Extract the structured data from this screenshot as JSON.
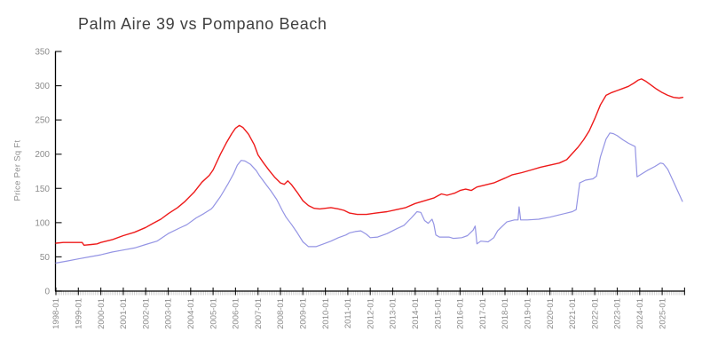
{
  "window": {
    "background": "#ffffff"
  },
  "chart_data": {
    "type": "line",
    "title": "Palm Aire 39 vs Pompano Beach",
    "ylabel": "Price Per Sq Ft",
    "xlabel": "",
    "ylim": [
      0,
      350
    ],
    "yticks": [
      0,
      50,
      100,
      150,
      200,
      250,
      300,
      350
    ],
    "x_tick_labels": [
      "1998-01",
      "1999-01",
      "2000-01",
      "2001-01",
      "2002-01",
      "2003-01",
      "2004-01",
      "2005-01",
      "2006-01",
      "2007-01",
      "2008-01",
      "2009-01",
      "2010-01",
      "2011-01",
      "2012-01",
      "2013-01",
      "2014-01",
      "2015-01",
      "2016-01",
      "2017-01",
      "2018-01",
      "2019-01",
      "2020-01",
      "2021-01",
      "2022-01",
      "2023-01",
      "2024-01",
      "2025-01"
    ],
    "x_tick_start_year": 1998,
    "x_axis_end_year": 2026.0,
    "x_minor_tick_interval": "monthly",
    "grid": false,
    "legend": "none",
    "colors": {
      "axis": "#000000",
      "major_tick": "#222222",
      "minor_tick": "#c9c9c9",
      "tick_label": "#8c8c8c",
      "title": "#3f3f3f"
    },
    "series": [
      {
        "name": "Pompano Beach",
        "color": "#ee1a1a",
        "stroke_width": 1.4,
        "points": [
          [
            1998.0,
            70
          ],
          [
            1998.33,
            71
          ],
          [
            1998.67,
            71
          ],
          [
            1999.0,
            71
          ],
          [
            1999.17,
            71
          ],
          [
            1999.25,
            67
          ],
          [
            1999.58,
            68
          ],
          [
            1999.83,
            69
          ],
          [
            2000.0,
            71
          ],
          [
            2000.5,
            75
          ],
          [
            2001.0,
            81
          ],
          [
            2001.5,
            86
          ],
          [
            2002.0,
            93
          ],
          [
            2002.33,
            99
          ],
          [
            2002.67,
            105
          ],
          [
            2003.0,
            113
          ],
          [
            2003.42,
            122
          ],
          [
            2003.75,
            131
          ],
          [
            2004.17,
            145
          ],
          [
            2004.5,
            159
          ],
          [
            2004.83,
            169
          ],
          [
            2005.0,
            177
          ],
          [
            2005.33,
            200
          ],
          [
            2005.58,
            216
          ],
          [
            2005.83,
            230
          ],
          [
            2006.0,
            238
          ],
          [
            2006.17,
            242
          ],
          [
            2006.33,
            239
          ],
          [
            2006.58,
            229
          ],
          [
            2006.83,
            214
          ],
          [
            2007.0,
            199
          ],
          [
            2007.25,
            187
          ],
          [
            2007.5,
            176
          ],
          [
            2007.75,
            166
          ],
          [
            2008.0,
            158
          ],
          [
            2008.17,
            156
          ],
          [
            2008.33,
            161
          ],
          [
            2008.5,
            155
          ],
          [
            2008.75,
            144
          ],
          [
            2009.0,
            132
          ],
          [
            2009.25,
            125
          ],
          [
            2009.5,
            121
          ],
          [
            2009.75,
            120
          ],
          [
            2010.0,
            121
          ],
          [
            2010.25,
            122
          ],
          [
            2010.58,
            120
          ],
          [
            2010.83,
            118
          ],
          [
            2011.08,
            114
          ],
          [
            2011.42,
            112
          ],
          [
            2011.83,
            112
          ],
          [
            2012.25,
            114
          ],
          [
            2012.75,
            116
          ],
          [
            2013.17,
            119
          ],
          [
            2013.58,
            122
          ],
          [
            2014.0,
            128
          ],
          [
            2014.42,
            132
          ],
          [
            2014.83,
            136
          ],
          [
            2015.0,
            139
          ],
          [
            2015.17,
            142
          ],
          [
            2015.42,
            140
          ],
          [
            2015.75,
            143
          ],
          [
            2016.0,
            147
          ],
          [
            2016.25,
            149
          ],
          [
            2016.5,
            147
          ],
          [
            2016.75,
            152
          ],
          [
            2017.0,
            154
          ],
          [
            2017.5,
            158
          ],
          [
            2018.0,
            165
          ],
          [
            2018.33,
            170
          ],
          [
            2018.75,
            173
          ],
          [
            2019.17,
            177
          ],
          [
            2019.58,
            181
          ],
          [
            2020.0,
            184
          ],
          [
            2020.42,
            187
          ],
          [
            2020.75,
            192
          ],
          [
            2021.0,
            201
          ],
          [
            2021.25,
            210
          ],
          [
            2021.5,
            221
          ],
          [
            2021.75,
            234
          ],
          [
            2022.0,
            252
          ],
          [
            2022.25,
            272
          ],
          [
            2022.5,
            286
          ],
          [
            2022.75,
            290
          ],
          [
            2023.0,
            293
          ],
          [
            2023.25,
            296
          ],
          [
            2023.5,
            299
          ],
          [
            2023.75,
            304
          ],
          [
            2023.92,
            308
          ],
          [
            2024.08,
            310
          ],
          [
            2024.25,
            307
          ],
          [
            2024.5,
            301
          ],
          [
            2024.75,
            295
          ],
          [
            2025.0,
            290
          ],
          [
            2025.25,
            286
          ],
          [
            2025.5,
            283
          ],
          [
            2025.75,
            282
          ],
          [
            2025.92,
            283
          ]
        ]
      },
      {
        "name": "Palm Aire 39",
        "color": "#9494e4",
        "stroke_width": 1.2,
        "points": [
          [
            1998.0,
            41
          ],
          [
            1998.5,
            44
          ],
          [
            1999.0,
            47
          ],
          [
            1999.5,
            50
          ],
          [
            2000.0,
            53
          ],
          [
            2000.5,
            57
          ],
          [
            2001.0,
            60
          ],
          [
            2001.5,
            63
          ],
          [
            2002.0,
            68
          ],
          [
            2002.5,
            73
          ],
          [
            2003.0,
            84
          ],
          [
            2003.5,
            92
          ],
          [
            2003.83,
            97
          ],
          [
            2004.25,
            107
          ],
          [
            2004.58,
            113
          ],
          [
            2004.92,
            120
          ],
          [
            2005.0,
            123
          ],
          [
            2005.33,
            138
          ],
          [
            2005.67,
            157
          ],
          [
            2005.92,
            172
          ],
          [
            2006.08,
            184
          ],
          [
            2006.25,
            191
          ],
          [
            2006.42,
            190
          ],
          [
            2006.67,
            185
          ],
          [
            2006.92,
            176
          ],
          [
            2007.08,
            168
          ],
          [
            2007.33,
            157
          ],
          [
            2007.58,
            146
          ],
          [
            2007.83,
            134
          ],
          [
            2008.08,
            118
          ],
          [
            2008.25,
            108
          ],
          [
            2008.5,
            97
          ],
          [
            2008.75,
            85
          ],
          [
            2009.0,
            72
          ],
          [
            2009.25,
            65
          ],
          [
            2009.58,
            65
          ],
          [
            2009.92,
            69
          ],
          [
            2010.25,
            73
          ],
          [
            2010.58,
            78
          ],
          [
            2010.92,
            82
          ],
          [
            2011.08,
            85
          ],
          [
            2011.33,
            87
          ],
          [
            2011.58,
            88
          ],
          [
            2011.83,
            83
          ],
          [
            2012.0,
            78
          ],
          [
            2012.33,
            79
          ],
          [
            2012.75,
            84
          ],
          [
            2013.17,
            91
          ],
          [
            2013.5,
            96
          ],
          [
            2013.83,
            107
          ],
          [
            2014.0,
            113
          ],
          [
            2014.08,
            116
          ],
          [
            2014.25,
            115
          ],
          [
            2014.42,
            103
          ],
          [
            2014.58,
            99
          ],
          [
            2014.75,
            105
          ],
          [
            2014.83,
            98
          ],
          [
            2014.92,
            82
          ],
          [
            2015.08,
            79
          ],
          [
            2015.5,
            79
          ],
          [
            2015.7,
            77
          ],
          [
            2016.08,
            78
          ],
          [
            2016.33,
            81
          ],
          [
            2016.58,
            89
          ],
          [
            2016.67,
            95
          ],
          [
            2016.75,
            69
          ],
          [
            2016.92,
            73
          ],
          [
            2017.25,
            72
          ],
          [
            2017.5,
            78
          ],
          [
            2017.67,
            88
          ],
          [
            2017.92,
            96
          ],
          [
            2018.08,
            101
          ],
          [
            2018.42,
            104
          ],
          [
            2018.58,
            104
          ],
          [
            2018.63,
            123
          ],
          [
            2018.7,
            104
          ],
          [
            2019.0,
            104
          ],
          [
            2019.5,
            105
          ],
          [
            2020.0,
            108
          ],
          [
            2020.5,
            112
          ],
          [
            2021.0,
            116
          ],
          [
            2021.17,
            119
          ],
          [
            2021.33,
            158
          ],
          [
            2021.58,
            162
          ],
          [
            2021.92,
            164
          ],
          [
            2022.08,
            168
          ],
          [
            2022.25,
            196
          ],
          [
            2022.5,
            222
          ],
          [
            2022.67,
            231
          ],
          [
            2022.83,
            230
          ],
          [
            2023.0,
            227
          ],
          [
            2023.25,
            221
          ],
          [
            2023.5,
            216
          ],
          [
            2023.8,
            211
          ],
          [
            2023.88,
            167
          ],
          [
            2024.08,
            171
          ],
          [
            2024.33,
            176
          ],
          [
            2024.67,
            182
          ],
          [
            2024.92,
            187
          ],
          [
            2025.05,
            186
          ],
          [
            2025.25,
            178
          ],
          [
            2025.5,
            160
          ],
          [
            2025.9,
            131
          ]
        ]
      }
    ]
  }
}
